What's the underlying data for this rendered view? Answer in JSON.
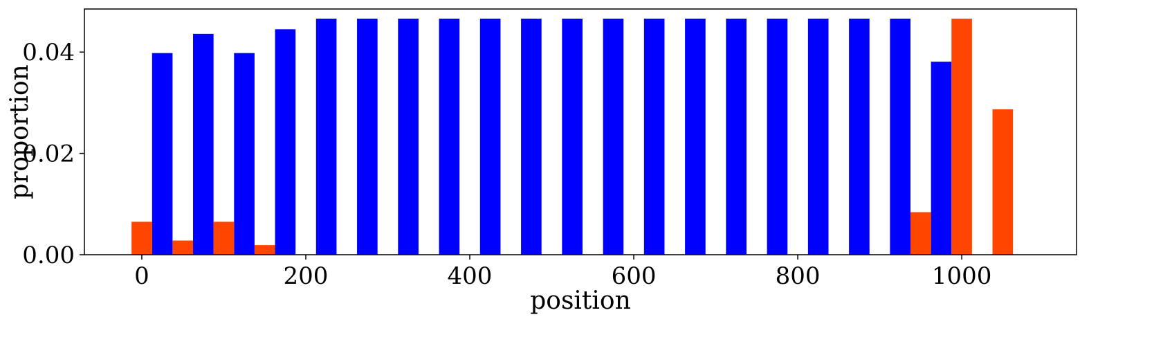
{
  "chart_data": {
    "type": "bar",
    "xlabel": "position",
    "ylabel": "proportion",
    "xlim": [
      -70,
      1140
    ],
    "ylim": [
      0,
      0.0485
    ],
    "bar_width": 25,
    "x_ticks": [
      0,
      200,
      400,
      600,
      800,
      1000
    ],
    "x_tick_labels": [
      "0",
      "200",
      "400",
      "600",
      "800",
      "1000"
    ],
    "y_ticks": [
      0,
      0.02,
      0.04
    ],
    "y_tick_labels": [
      "0.00",
      "0.02",
      "0.04"
    ],
    "grid": false,
    "legend": "none",
    "series": [
      {
        "color": "#0000ff",
        "offset": 25,
        "x": [
          0,
          50,
          100,
          150,
          200,
          250,
          300,
          350,
          400,
          450,
          500,
          550,
          600,
          650,
          700,
          750,
          800,
          850,
          900,
          950
        ],
        "values": [
          0.0398,
          0.0436,
          0.0398,
          0.0445,
          0.0466,
          0.0466,
          0.0466,
          0.0466,
          0.0466,
          0.0466,
          0.0466,
          0.0466,
          0.0466,
          0.0466,
          0.0466,
          0.0466,
          0.0466,
          0.0466,
          0.0466,
          0.0381
        ]
      },
      {
        "color": "#ff4500",
        "offset": 0,
        "x": [
          0,
          50,
          100,
          150,
          950,
          1000,
          1050
        ],
        "values": [
          0.0065,
          0.0028,
          0.0065,
          0.0019,
          0.0084,
          0.0466,
          0.0287
        ]
      }
    ]
  }
}
